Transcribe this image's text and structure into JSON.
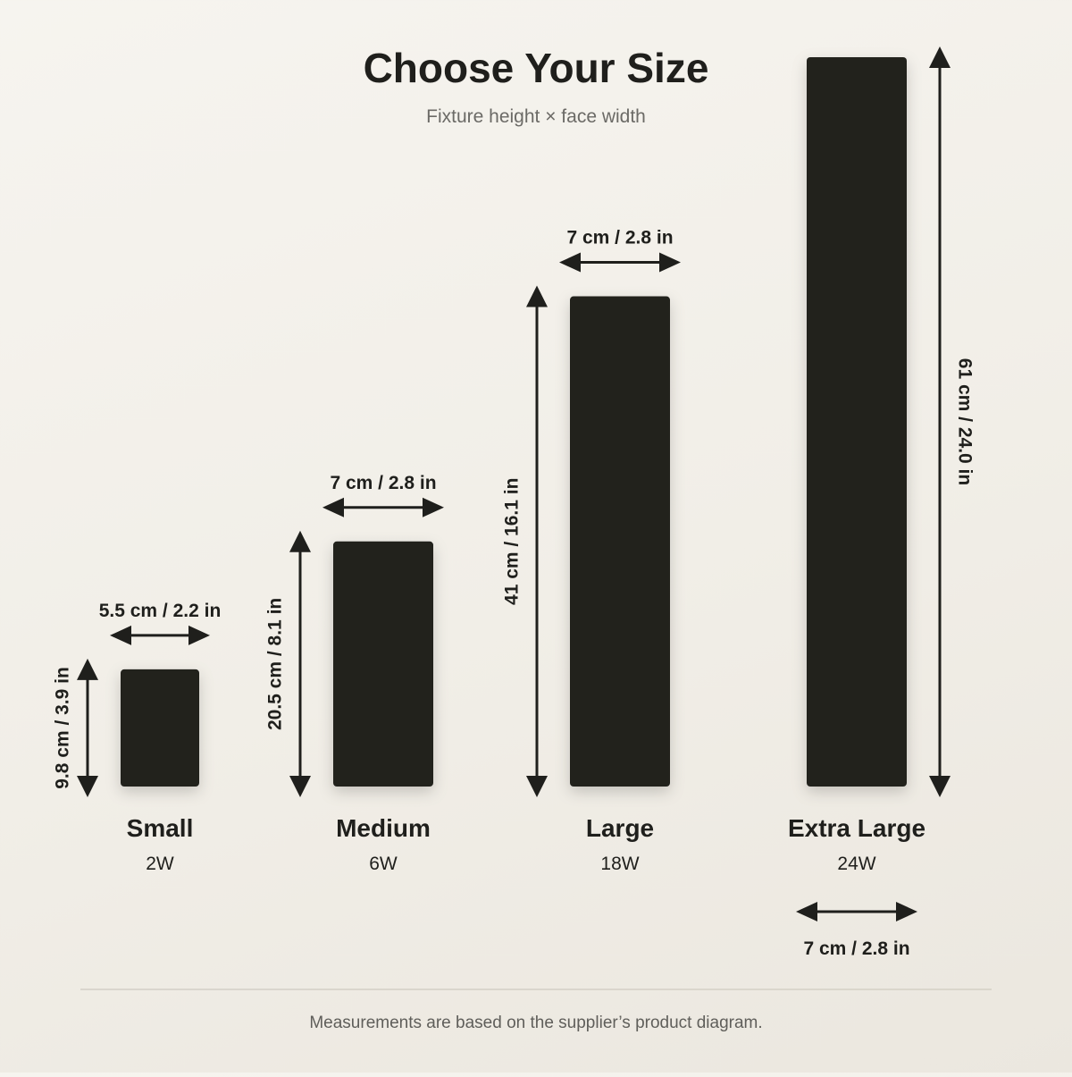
{
  "title": "Choose Your Size",
  "subtitle": "Fixture height × face width",
  "footnote": "Measurements are based on the supplier’s product diagram.",
  "colors": {
    "fixture": "#22231f",
    "ink": "#1f1f1c",
    "muted": "#6b6a66",
    "rule": "#d3cfc6"
  },
  "sizes": [
    {
      "name": "Small",
      "power": "2W",
      "height_label": "9.8 cm / 3.9 in",
      "width_label": "5.5 cm / 2.2 in",
      "height_cm": 9.8,
      "width_cm": 5.5
    },
    {
      "name": "Medium",
      "power": "6W",
      "height_label": "20.5 cm / 8.1 in",
      "width_label": "7 cm / 2.8 in",
      "height_cm": 20.5,
      "width_cm": 7
    },
    {
      "name": "Large",
      "power": "18W",
      "height_label": "41 cm / 16.1 in",
      "width_label": "7 cm / 2.8 in",
      "height_cm": 41,
      "width_cm": 7
    },
    {
      "name": "Extra Large",
      "power": "24W",
      "height_label": "61 cm / 24.0 in",
      "width_label": "7 cm / 2.8 in",
      "height_cm": 61,
      "width_cm": 7
    }
  ]
}
